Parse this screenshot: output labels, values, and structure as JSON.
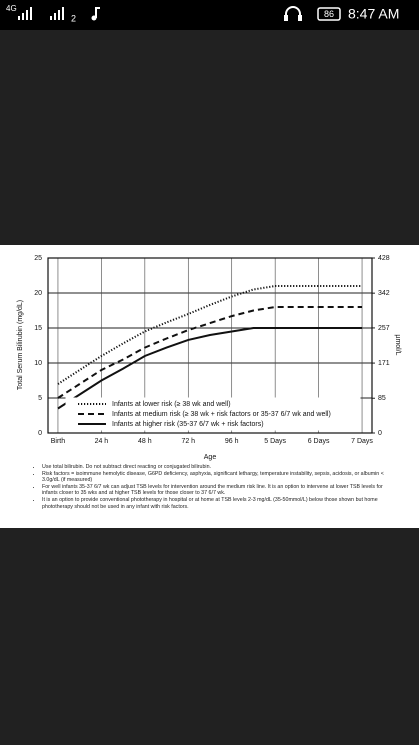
{
  "status_bar": {
    "network": "4G",
    "sim": "2",
    "battery": "86",
    "time": "8:47 AM"
  },
  "chart_data": {
    "type": "line",
    "y_label": "Total Serum Bilirubin (mg/dL)",
    "y2_label": "µmol/L",
    "x_label": "Age",
    "xlim": [
      -5.5,
      173.5
    ],
    "ylim": [
      0,
      25
    ],
    "y2lim": [
      0,
      428
    ],
    "xticks": [
      {
        "value": 0,
        "label": "Birth"
      },
      {
        "value": 24,
        "label": "24 h"
      },
      {
        "value": 48,
        "label": "48 h"
      },
      {
        "value": 72,
        "label": "72 h"
      },
      {
        "value": 96,
        "label": "96 h"
      },
      {
        "value": 120,
        "label": "5 Days"
      },
      {
        "value": 144,
        "label": "6 Days"
      },
      {
        "value": 168,
        "label": "7 Days"
      }
    ],
    "yticks": [
      0,
      5,
      10,
      15,
      20,
      25
    ],
    "y2ticks": [
      0,
      85,
      171,
      257,
      342,
      428
    ],
    "grid": true,
    "x": [
      0,
      12,
      24,
      36,
      48,
      60,
      72,
      84,
      96,
      108,
      120,
      144,
      168
    ],
    "series": [
      {
        "name": "Infants at lower risk (≥ 38 wk and well)",
        "color": "#111111",
        "style": "dotted",
        "values": [
          7,
          9,
          11,
          12.8,
          14.5,
          15.8,
          17,
          18.3,
          19.5,
          20.5,
          21,
          21,
          21
        ]
      },
      {
        "name": "Infants at medium risk (≥ 38 wk + risk factors or 35-37 6/7 wk and well)",
        "color": "#111111",
        "style": "dashed",
        "values": [
          5,
          7,
          9,
          10.5,
          12.2,
          13.5,
          14.7,
          15.7,
          16.7,
          17.5,
          18,
          18,
          18
        ]
      },
      {
        "name": "Infants at higher risk (35-37 6/7 wk + risk factors)",
        "color": "#111111",
        "style": "solid",
        "values": [
          3.5,
          5.5,
          7.5,
          9.2,
          11,
          12.2,
          13.3,
          14,
          14.5,
          15,
          15,
          15,
          15
        ]
      }
    ],
    "notes": [
      "Use total bilirubin.  Do not subtract direct reacting or conjugated bilirubin.",
      "Risk factors = isoimmune hemolytic disease, G6PD deficiency, asphyxia, significant lethargy, temperature instability, sepsis, acidosis, or albumin < 3.0g/dL (if measured)",
      "For well infants 35-37 6/7 wk can adjust TSB levels for intervention around the medium risk line.  It is an option to intervene at lower TSB levels for infants closer to 35 wks and at higher TSB levels for those closer to 37 6/7 wk.",
      "It is an option to provide conventional phototherapy in hospital or at home at TSB levels 2-3 mg/dL (35-50mmol/L) below those shown but home phototherapy should not be used in any infant with risk factors."
    ]
  }
}
